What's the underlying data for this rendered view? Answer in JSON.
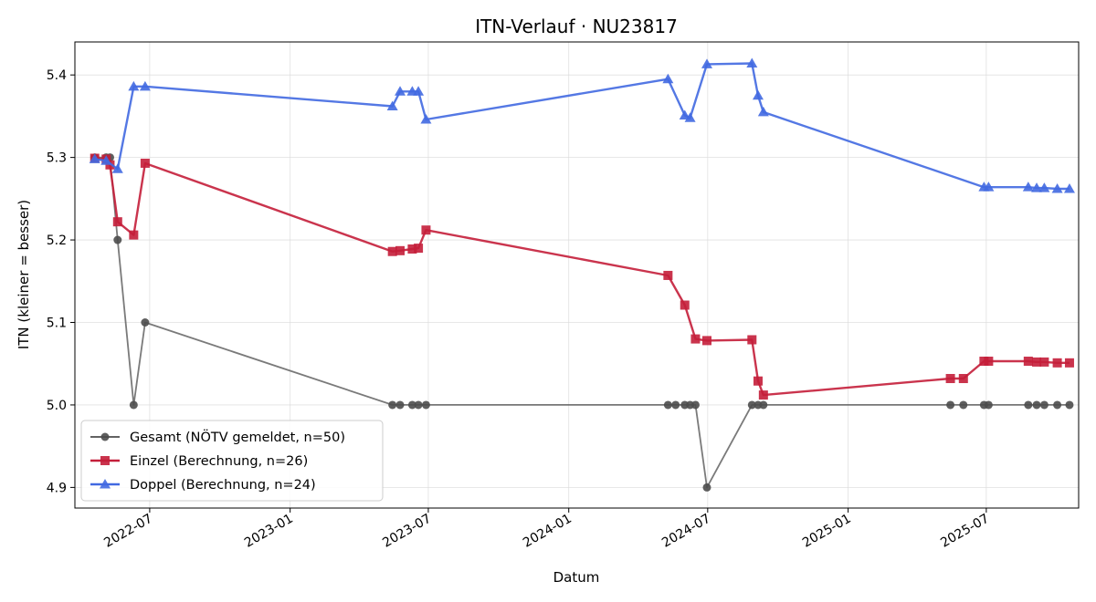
{
  "chart_data": {
    "type": "line",
    "title": "ITN-Verlauf · NU23817",
    "xlabel": "Datum",
    "ylabel": "ITN  (kleiner = besser)",
    "ylim": [
      4.875,
      5.44
    ],
    "xlim": [
      "2022-03-25",
      "2025-10-30"
    ],
    "grid": true,
    "legend_position": "lower-left",
    "x_ticks": [
      "2022-07",
      "2023-01",
      "2023-07",
      "2024-01",
      "2024-07",
      "2025-01",
      "2025-07"
    ],
    "y_ticks": [
      "4.9",
      "5.0",
      "5.1",
      "5.2",
      "5.3",
      "5.4"
    ],
    "series": [
      {
        "name": "Gesamt (NÖTV gemeldet, n=50)",
        "color": "#4d4d4d",
        "marker": "circle",
        "points": [
          [
            "2022-04-20",
            5.3
          ],
          [
            "2022-05-05",
            5.3
          ],
          [
            "2022-05-10",
            5.3
          ],
          [
            "2022-05-20",
            5.2
          ],
          [
            "2022-06-10",
            5.0
          ],
          [
            "2022-06-25",
            5.1
          ],
          [
            "2023-05-15",
            5.0
          ],
          [
            "2023-05-25",
            5.0
          ],
          [
            "2023-06-10",
            5.0
          ],
          [
            "2023-06-18",
            5.0
          ],
          [
            "2023-06-28",
            5.0
          ],
          [
            "2024-05-10",
            5.0
          ],
          [
            "2024-05-20",
            5.0
          ],
          [
            "2024-06-01",
            5.0
          ],
          [
            "2024-06-08",
            5.0
          ],
          [
            "2024-06-15",
            5.0
          ],
          [
            "2024-06-30",
            4.9
          ],
          [
            "2024-08-28",
            5.0
          ],
          [
            "2024-09-05",
            5.0
          ],
          [
            "2024-09-12",
            5.0
          ],
          [
            "2025-05-15",
            5.0
          ],
          [
            "2025-06-01",
            5.0
          ],
          [
            "2025-06-28",
            5.0
          ],
          [
            "2025-07-04",
            5.0
          ],
          [
            "2025-08-25",
            5.0
          ],
          [
            "2025-09-05",
            5.0
          ],
          [
            "2025-09-15",
            5.0
          ],
          [
            "2025-10-02",
            5.0
          ],
          [
            "2025-10-18",
            5.0
          ]
        ]
      },
      {
        "name": "Einzel (Berechnung, n=26)",
        "color": "#c41e3a",
        "marker": "square",
        "points": [
          [
            "2022-04-20",
            5.299
          ],
          [
            "2022-05-05",
            5.298
          ],
          [
            "2022-05-10",
            5.291
          ],
          [
            "2022-05-20",
            5.222
          ],
          [
            "2022-06-10",
            5.206
          ],
          [
            "2022-06-25",
            5.293
          ],
          [
            "2023-05-15",
            5.186
          ],
          [
            "2023-05-25",
            5.187
          ],
          [
            "2023-06-10",
            5.189
          ],
          [
            "2023-06-18",
            5.19
          ],
          [
            "2023-06-28",
            5.212
          ],
          [
            "2024-05-10",
            5.157
          ],
          [
            "2024-06-01",
            5.121
          ],
          [
            "2024-06-15",
            5.08
          ],
          [
            "2024-06-30",
            5.078
          ],
          [
            "2024-08-28",
            5.079
          ],
          [
            "2024-09-05",
            5.029
          ],
          [
            "2024-09-12",
            5.012
          ],
          [
            "2025-05-15",
            5.032
          ],
          [
            "2025-06-01",
            5.032
          ],
          [
            "2025-06-28",
            5.053
          ],
          [
            "2025-07-04",
            5.053
          ],
          [
            "2025-08-25",
            5.053
          ],
          [
            "2025-09-05",
            5.052
          ],
          [
            "2025-09-15",
            5.052
          ],
          [
            "2025-10-02",
            5.051
          ],
          [
            "2025-10-18",
            5.051
          ]
        ]
      },
      {
        "name": "Doppel (Berechnung, n=24)",
        "color": "#4169e1",
        "marker": "triangle",
        "points": [
          [
            "2022-04-20",
            5.298
          ],
          [
            "2022-05-05",
            5.296
          ],
          [
            "2022-05-20",
            5.286
          ],
          [
            "2022-06-10",
            5.386
          ],
          [
            "2022-06-25",
            5.386
          ],
          [
            "2023-05-15",
            5.362
          ],
          [
            "2023-05-25",
            5.38
          ],
          [
            "2023-06-10",
            5.38
          ],
          [
            "2023-06-18",
            5.38
          ],
          [
            "2023-06-28",
            5.346
          ],
          [
            "2024-05-10",
            5.395
          ],
          [
            "2024-06-01",
            5.351
          ],
          [
            "2024-06-08",
            5.348
          ],
          [
            "2024-06-30",
            5.413
          ],
          [
            "2024-08-28",
            5.414
          ],
          [
            "2024-09-05",
            5.375
          ],
          [
            "2024-09-12",
            5.355
          ],
          [
            "2025-06-28",
            5.264
          ],
          [
            "2025-07-04",
            5.264
          ],
          [
            "2025-08-25",
            5.264
          ],
          [
            "2025-09-05",
            5.263
          ],
          [
            "2025-09-15",
            5.263
          ],
          [
            "2025-10-02",
            5.262
          ],
          [
            "2025-10-18",
            5.262
          ]
        ]
      }
    ]
  }
}
